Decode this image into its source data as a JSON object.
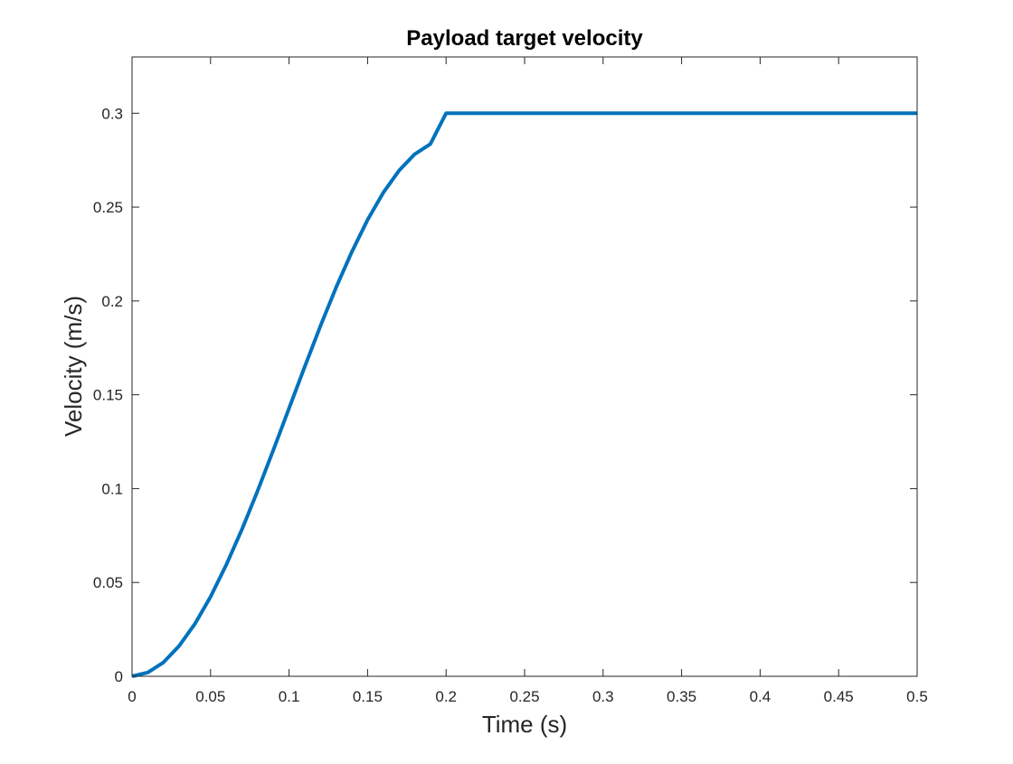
{
  "chart_data": {
    "type": "line",
    "title": "Payload target velocity",
    "xlabel": "Time (s)",
    "ylabel": "Velocity (m/s)",
    "xlim": [
      0,
      0.5
    ],
    "ylim": [
      0,
      0.33
    ],
    "xticks": [
      0,
      0.05,
      0.1,
      0.15,
      0.2,
      0.25,
      0.3,
      0.35,
      0.4,
      0.45,
      0.5
    ],
    "xtick_labels": [
      "0",
      "0.05",
      "0.1",
      "0.15",
      "0.2",
      "0.25",
      "0.3",
      "0.35",
      "0.4",
      "0.45",
      "0.5"
    ],
    "yticks": [
      0,
      0.05,
      0.1,
      0.15,
      0.2,
      0.25,
      0.3
    ],
    "ytick_labels": [
      "0",
      "0.05",
      "0.1",
      "0.15",
      "0.2",
      "0.25",
      "0.3"
    ],
    "grid": false,
    "line_color": "#0072BD",
    "series": [
      {
        "x": [
          0,
          0.01,
          0.02,
          0.03,
          0.04,
          0.05,
          0.06,
          0.07,
          0.08,
          0.09,
          0.1,
          0.11,
          0.12,
          0.13,
          0.14,
          0.15,
          0.16,
          0.17,
          0.18,
          0.19,
          0.2,
          0.25,
          0.3,
          0.35,
          0.4,
          0.45,
          0.5
        ],
        "y": [
          0,
          0.002,
          0.0074,
          0.0162,
          0.0279,
          0.0424,
          0.0594,
          0.0783,
          0.0989,
          0.1206,
          0.1428,
          0.165,
          0.1867,
          0.2073,
          0.2262,
          0.2432,
          0.2577,
          0.2694,
          0.2782,
          0.2836,
          0.3,
          0.3,
          0.3,
          0.3,
          0.3,
          0.3,
          0.3
        ]
      }
    ]
  }
}
